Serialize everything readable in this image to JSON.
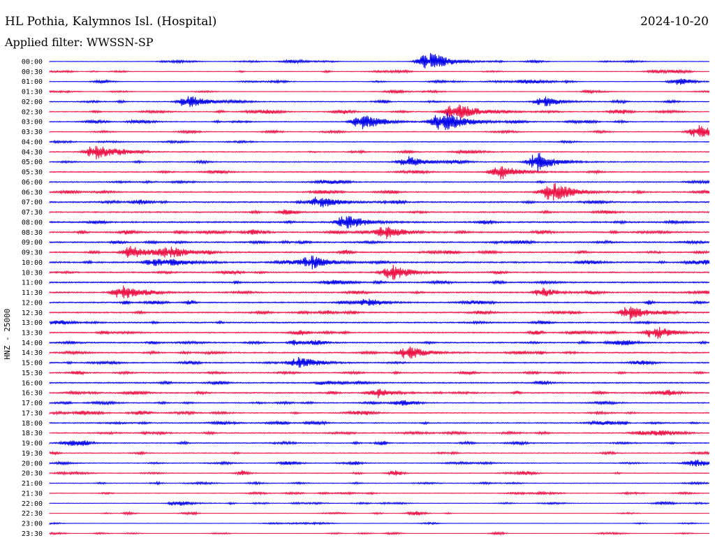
{
  "header": {
    "station": "HL Pothia, Kalymnos Isl. (Hospital)",
    "date": "2024-10-20",
    "filter": "Applied filter: WWSSN-SP"
  },
  "channel_label": "HNZ - 25000",
  "colors": {
    "even_row": "#0000ee",
    "odd_row": "#ee1144"
  },
  "chart_data": {
    "type": "line",
    "subtype": "helicorder",
    "title": "HL Pothia, Kalymnos Isl. (Hospital)",
    "ylabel": "HNZ - 25000",
    "tick_labels": [
      "00:00",
      "00:30",
      "01:00",
      "01:30",
      "02:00",
      "02:30",
      "03:00",
      "03:30",
      "04:00",
      "04:30",
      "05:00",
      "05:30",
      "06:00",
      "06:30",
      "07:00",
      "07:30",
      "08:00",
      "08:30",
      "09:00",
      "09:30",
      "10:00",
      "10:30",
      "11:00",
      "11:30",
      "12:00",
      "12:30",
      "13:00",
      "13:30",
      "14:00",
      "14:30",
      "15:00",
      "15:30",
      "16:00",
      "16:30",
      "17:00",
      "17:30",
      "18:00",
      "18:30",
      "19:00",
      "19:30",
      "20:00",
      "20:30",
      "21:00",
      "21:30",
      "22:00",
      "22:30",
      "23:00",
      "23:30"
    ],
    "minutes_per_line": 30,
    "noise_level": [
      0.25,
      0.3,
      0.3,
      0.3,
      0.45,
      0.45,
      0.45,
      0.4,
      0.45,
      0.5,
      0.5,
      0.55,
      0.55,
      0.6,
      0.7,
      0.65,
      0.75,
      0.7,
      0.7,
      0.7,
      0.75,
      0.65,
      0.7,
      0.7,
      0.65,
      0.65,
      0.65,
      0.6,
      0.65,
      0.65,
      0.6,
      0.6,
      0.65,
      0.65,
      0.5,
      0.5,
      0.55,
      0.55,
      0.5,
      0.45,
      0.4,
      0.4,
      0.35,
      0.35,
      0.25,
      0.2,
      0.2,
      0.15
    ],
    "events": [
      {
        "row": 0,
        "minute": 17.3,
        "amplitude": 14,
        "duration": 1.2
      },
      {
        "row": 2,
        "minute": 28.5,
        "amplitude": 5,
        "duration": 0.8
      },
      {
        "row": 4,
        "minute": 6.3,
        "amplitude": 10,
        "duration": 1.0
      },
      {
        "row": 4,
        "minute": 22.5,
        "amplitude": 6,
        "duration": 1.0
      },
      {
        "row": 5,
        "minute": 18.5,
        "amplitude": 13,
        "duration": 1.2
      },
      {
        "row": 6,
        "minute": 14.2,
        "amplitude": 12,
        "duration": 1.0
      },
      {
        "row": 6,
        "minute": 17.9,
        "amplitude": 16,
        "duration": 1.2
      },
      {
        "row": 7,
        "minute": 29.5,
        "amplitude": 10,
        "duration": 1.0
      },
      {
        "row": 9,
        "minute": 2.1,
        "amplitude": 11,
        "duration": 1.0
      },
      {
        "row": 10,
        "minute": 16.3,
        "amplitude": 8,
        "duration": 1.0
      },
      {
        "row": 10,
        "minute": 22.2,
        "amplitude": 13,
        "duration": 1.0
      },
      {
        "row": 11,
        "minute": 20.5,
        "amplitude": 11,
        "duration": 1.0
      },
      {
        "row": 13,
        "minute": 22.9,
        "amplitude": 14,
        "duration": 1.2
      },
      {
        "row": 14,
        "minute": 12.3,
        "amplitude": 9,
        "duration": 1.0
      },
      {
        "row": 16,
        "minute": 13.5,
        "amplitude": 11,
        "duration": 1.0
      },
      {
        "row": 17,
        "minute": 15.3,
        "amplitude": 10,
        "duration": 1.0
      },
      {
        "row": 19,
        "minute": 3.9,
        "amplitude": 7,
        "duration": 1.0
      },
      {
        "row": 19,
        "minute": 5.5,
        "amplitude": 9,
        "duration": 1.0
      },
      {
        "row": 20,
        "minute": 4.7,
        "amplitude": 7,
        "duration": 0.8
      },
      {
        "row": 20,
        "minute": 11.9,
        "amplitude": 10,
        "duration": 1.0
      },
      {
        "row": 21,
        "minute": 15.6,
        "amplitude": 9,
        "duration": 1.0
      },
      {
        "row": 23,
        "minute": 3.3,
        "amplitude": 10,
        "duration": 1.0
      },
      {
        "row": 23,
        "minute": 22.4,
        "amplitude": 7,
        "duration": 0.8
      },
      {
        "row": 24,
        "minute": 14.5,
        "amplitude": 7,
        "duration": 0.8
      },
      {
        "row": 25,
        "minute": 26.4,
        "amplitude": 10,
        "duration": 1.0
      },
      {
        "row": 27,
        "minute": 27.5,
        "amplitude": 8,
        "duration": 1.0
      },
      {
        "row": 29,
        "minute": 16.3,
        "amplitude": 10,
        "duration": 1.0
      },
      {
        "row": 30,
        "minute": 11.3,
        "amplitude": 8,
        "duration": 1.0
      },
      {
        "row": 33,
        "minute": 14.9,
        "amplitude": 6,
        "duration": 1.0
      },
      {
        "row": 44,
        "minute": 5.8,
        "amplitude": 5,
        "duration": 0.8
      }
    ]
  }
}
